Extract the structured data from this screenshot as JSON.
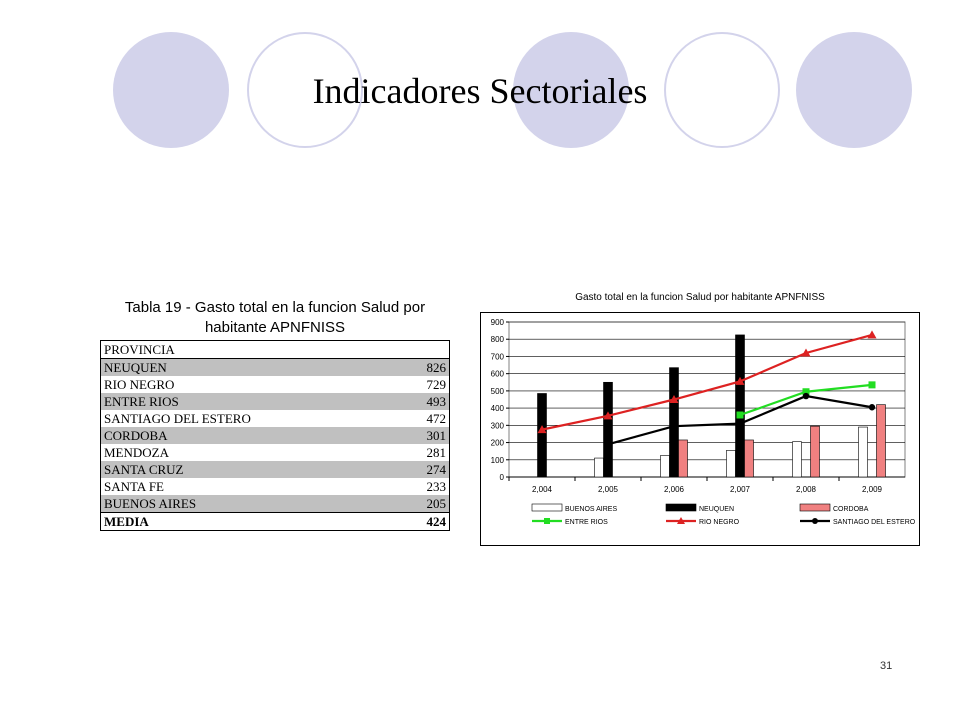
{
  "slide": {
    "title": "Indicadores Sectoriales",
    "page_number": "31",
    "circle_color": "#d3d3eb"
  },
  "table": {
    "caption_line1": "Tabla 19 - Gasto total en la funcion Salud por",
    "caption_line2": "habitante APNFNISS",
    "header": "PROVINCIA",
    "rows": [
      {
        "name": "NEUQUEN",
        "value": "826"
      },
      {
        "name": "RIO NEGRO",
        "value": "729"
      },
      {
        "name": "ENTRE RIOS",
        "value": "493"
      },
      {
        "name": "SANTIAGO DEL ESTERO",
        "value": "472"
      },
      {
        "name": "CORDOBA",
        "value": "301"
      },
      {
        "name": "MENDOZA",
        "value": "281"
      },
      {
        "name": "SANTA CRUZ",
        "value": "274"
      },
      {
        "name": "SANTA FE",
        "value": "233"
      },
      {
        "name": "BUENOS AIRES",
        "value": "205"
      }
    ],
    "footer": {
      "name": "MEDIA",
      "value": "424"
    }
  },
  "chart_data": {
    "type": "bar",
    "title": "Gasto total en la funcion Salud por habitante APNFNISS",
    "categories": [
      "2,004",
      "2,005",
      "2,006",
      "2,007",
      "2,008",
      "2,009"
    ],
    "ylim": [
      0,
      900
    ],
    "yticks": [
      "0",
      "100",
      "200",
      "300",
      "400",
      "500",
      "600",
      "700",
      "800",
      "900"
    ],
    "grid": true,
    "legend_position": "bottom",
    "bar_series": [
      {
        "name": "BUENOS AIRES",
        "color": "#ffffff",
        "values": [
          null,
          110,
          125,
          155,
          205,
          290
        ]
      },
      {
        "name": "NEUQUEN",
        "color": "#000000",
        "values": [
          485,
          550,
          635,
          825,
          null,
          null
        ]
      },
      {
        "name": "CORDOBA",
        "color": "#f08080",
        "values": [
          null,
          null,
          215,
          215,
          295,
          420
        ]
      }
    ],
    "line_series": [
      {
        "name": "ENTRE RIOS",
        "color": "#22dd22",
        "marker": "square",
        "values": [
          null,
          null,
          null,
          360,
          495,
          535
        ]
      },
      {
        "name": "RIO NEGRO",
        "color": "#dd2222",
        "marker": "triangle",
        "values": [
          275,
          355,
          450,
          555,
          720,
          825
        ]
      },
      {
        "name": "SANTIAGO DEL ESTERO",
        "color": "#000000",
        "marker": "circle",
        "values": [
          null,
          190,
          295,
          310,
          470,
          405
        ]
      }
    ]
  }
}
